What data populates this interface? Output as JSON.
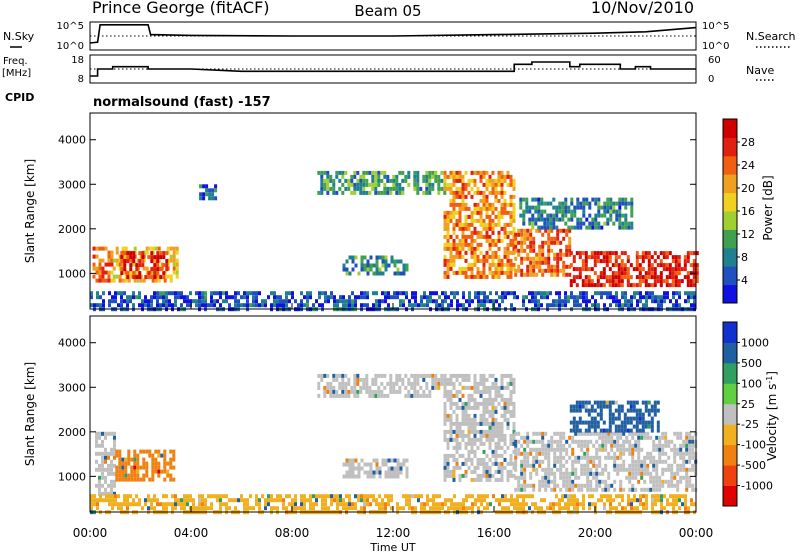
{
  "header": {
    "station": "Prince George (fitACF)",
    "beam": "Beam 05",
    "date": "10/Nov/2010"
  },
  "strip_labels": {
    "nsky": "N.Sky",
    "nsearch": "N.Search",
    "freq_line1": "Freq.",
    "freq_line2": "[MHz]",
    "nave": "Nave",
    "cpid": "CPID",
    "cpid_value": "normalsound (fast) -157"
  },
  "noise_axis": {
    "left_ticks": [
      "10^5",
      "10^0"
    ],
    "right_ticks": [
      "10^5",
      "10^0"
    ]
  },
  "freq_axis": {
    "left_ticks": [
      "18",
      "8"
    ],
    "right_ticks": [
      "60",
      "0"
    ]
  },
  "chart_data": [
    {
      "type": "line",
      "name": "noise_strip",
      "x_unit": "hours UT",
      "series": [
        {
          "name": "N.Sky",
          "style": "solid",
          "points": [
            [
              0,
              0.25
            ],
            [
              0.3,
              0.28
            ],
            [
              0.4,
              0.9
            ],
            [
              2.3,
              0.9
            ],
            [
              2.4,
              0.55
            ],
            [
              4,
              0.52
            ],
            [
              8,
              0.5
            ],
            [
              12,
              0.5
            ],
            [
              16,
              0.55
            ],
            [
              20,
              0.6
            ],
            [
              22,
              0.65
            ],
            [
              24,
              0.8
            ]
          ]
        },
        {
          "name": "N.Search",
          "style": "dotted",
          "points": [
            [
              0,
              0.5
            ],
            [
              24,
              0.5
            ]
          ]
        }
      ]
    },
    {
      "type": "line",
      "name": "freq_strip",
      "x_unit": "hours UT",
      "series": [
        {
          "name": "Freq",
          "style": "solid",
          "points": [
            [
              0,
              9
            ],
            [
              0.3,
              9
            ],
            [
              0.3,
              12
            ],
            [
              0.9,
              12
            ],
            [
              0.9,
              13
            ],
            [
              2.3,
              13
            ],
            [
              2.3,
              12
            ],
            [
              4,
              12
            ],
            [
              6,
              11
            ],
            [
              8,
              11
            ],
            [
              10,
              11
            ],
            [
              12,
              11
            ],
            [
              14,
              11
            ],
            [
              16.8,
              11
            ],
            [
              16.8,
              14
            ],
            [
              17.5,
              14
            ],
            [
              17.5,
              15
            ],
            [
              19,
              15
            ],
            [
              19,
              13
            ],
            [
              19.4,
              13
            ],
            [
              19.4,
              14
            ],
            [
              21,
              14
            ],
            [
              21,
              12
            ],
            [
              21.6,
              12
            ],
            [
              21.6,
              13
            ],
            [
              22.2,
              13
            ],
            [
              22.2,
              12
            ],
            [
              24,
              12
            ]
          ]
        },
        {
          "name": "Nave",
          "style": "dotted",
          "points": [
            [
              0,
              12
            ],
            [
              24,
              12
            ]
          ]
        }
      ]
    },
    {
      "type": "heatmap",
      "name": "power",
      "title": "",
      "xlabel": "",
      "ylabel": "Slant Range [km]",
      "xlim": [
        0,
        24
      ],
      "ylim": [
        200,
        4600
      ],
      "yticks": [
        1000,
        2000,
        3000,
        4000
      ],
      "colorbar": {
        "label": "Power [dB]",
        "min": 0,
        "max": 32,
        "ticks": [
          4,
          8,
          12,
          16,
          20,
          24,
          28
        ],
        "colors": [
          "#1010e0",
          "#2050c0",
          "#208090",
          "#40a050",
          "#a0d030",
          "#f0d020",
          "#f0a020",
          "#f06010",
          "#e02010",
          "#d00000"
        ]
      },
      "echo_regions": [
        {
          "x0": 0.1,
          "x1": 0.9,
          "r0": 800,
          "r1": 1600,
          "value": 24
        },
        {
          "x0": 0.9,
          "x1": 3.4,
          "r0": 800,
          "r1": 1600,
          "value": 20
        },
        {
          "x0": 1.2,
          "x1": 3.0,
          "r0": 900,
          "r1": 1500,
          "value": 28
        },
        {
          "x0": 4.2,
          "x1": 5.0,
          "r0": 2700,
          "r1": 3000,
          "value": 6
        },
        {
          "x0": 9.0,
          "x1": 14.0,
          "r0": 2800,
          "r1": 3300,
          "value": 10
        },
        {
          "x0": 10.0,
          "x1": 12.5,
          "r0": 1000,
          "r1": 1400,
          "value": 9
        },
        {
          "x0": 14.0,
          "x1": 16.8,
          "r0": 900,
          "r1": 3300,
          "value": 22
        },
        {
          "x0": 16.8,
          "x1": 19.0,
          "r0": 1000,
          "r1": 2000,
          "value": 24
        },
        {
          "x0": 19.0,
          "x1": 24.0,
          "r0": 700,
          "r1": 1500,
          "value": 28
        },
        {
          "x0": 17.0,
          "x1": 21.5,
          "r0": 2000,
          "r1": 2700,
          "value": 8
        },
        {
          "x0": 0.0,
          "x1": 24.0,
          "r0": 200,
          "r1": 600,
          "value": 5
        }
      ]
    },
    {
      "type": "heatmap",
      "name": "velocity",
      "title": "",
      "xlabel": "Time UT",
      "ylabel": "Slant Range [km]",
      "xlim": [
        0,
        24
      ],
      "ylim": [
        200,
        4600
      ],
      "xticks": [
        "00:00",
        "04:00",
        "08:00",
        "12:00",
        "16:00",
        "20:00",
        "00:00"
      ],
      "yticks": [
        1000,
        2000,
        3000,
        4000
      ],
      "colorbar": {
        "label": "Velocity [m s^-1]",
        "ticks": [
          "1000",
          "500",
          "100",
          "25",
          "-25",
          "-100",
          "-500",
          "-1000"
        ],
        "colors": [
          "#1030d0",
          "#2060a0",
          "#30a060",
          "#60d040",
          "#c0c0c0",
          "#f0b020",
          "#f08010",
          "#f04010",
          "#e00000"
        ]
      },
      "echo_regions": [
        {
          "x0": 0.2,
          "x1": 1.0,
          "r0": 600,
          "r1": 2000,
          "value": 0
        },
        {
          "x0": 1.0,
          "x1": 3.3,
          "r0": 900,
          "r1": 1600,
          "value": -100
        },
        {
          "x0": 9.0,
          "x1": 14.0,
          "r0": 2800,
          "r1": 3300,
          "value": 0
        },
        {
          "x0": 10.0,
          "x1": 12.5,
          "r0": 1000,
          "r1": 1400,
          "value": 0
        },
        {
          "x0": 14.0,
          "x1": 16.8,
          "r0": 900,
          "r1": 3300,
          "value": 0
        },
        {
          "x0": 16.8,
          "x1": 24.0,
          "r0": 700,
          "r1": 2000,
          "value": 0
        },
        {
          "x0": 19.0,
          "x1": 22.5,
          "r0": 2000,
          "r1": 2700,
          "value": 300
        },
        {
          "x0": 0.0,
          "x1": 24.0,
          "r0": 200,
          "r1": 600,
          "value": -50
        }
      ]
    }
  ]
}
